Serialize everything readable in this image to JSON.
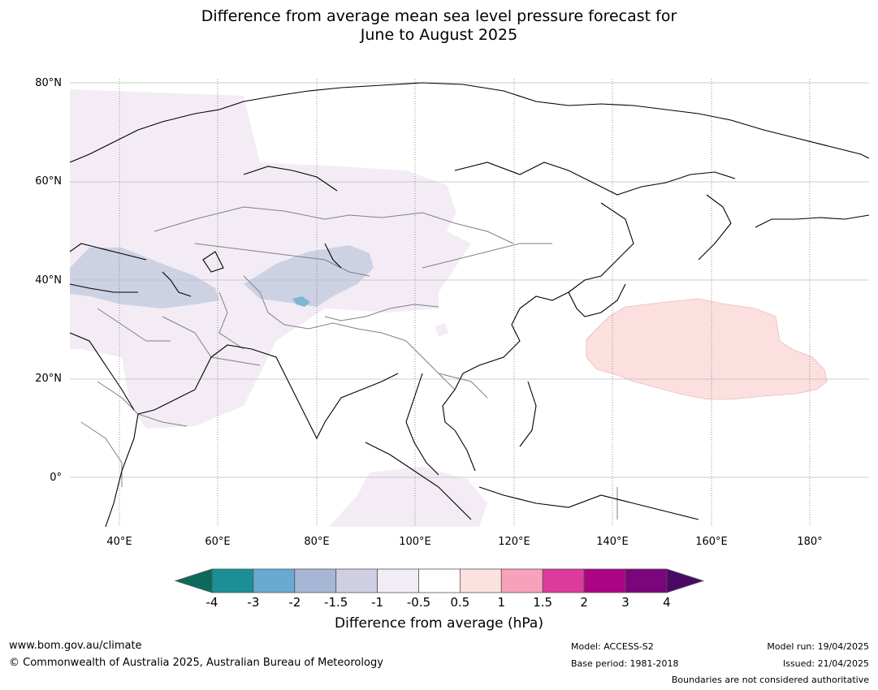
{
  "title_line1": "Difference from average mean sea level pressure forecast for",
  "title_line2": "June to August 2025",
  "map": {
    "lat_labels": [
      "80°N",
      "60°N",
      "40°N",
      "20°N",
      "0°"
    ],
    "lon_labels": [
      "40°E",
      "60°E",
      "80°E",
      "100°E",
      "120°E",
      "140°E",
      "160°E",
      "180°"
    ]
  },
  "colorbar": {
    "ticks": [
      "-4",
      "-3",
      "-2",
      "-1.5",
      "-1",
      "-0.5",
      "0.5",
      "1",
      "1.5",
      "2",
      "3",
      "4"
    ],
    "colors": [
      "#1a8f96",
      "#6aa9d1",
      "#a6b7d5",
      "#cfcfe3",
      "#f2ecf5",
      "#ffffff",
      "#fde0e0",
      "#f7a1bb",
      "#dd3a9b",
      "#ac0584",
      "#7b057a"
    ],
    "under_color": "#0c6a5c",
    "over_color": "#4a0a63",
    "label": "Difference from average (hPa)"
  },
  "footer": {
    "url": "www.bom.gov.au/climate",
    "copyright": "© Commonwealth of Australia 2025, Australian Bureau of Meteorology",
    "model": "Model: ACCESS-S2",
    "base_period": "Base period: 1981-2018",
    "model_run": "Model run: 19/04/2025",
    "issued": "Issued: 21/04/2025",
    "disclaimer": "Boundaries are not considered authoritative"
  }
}
